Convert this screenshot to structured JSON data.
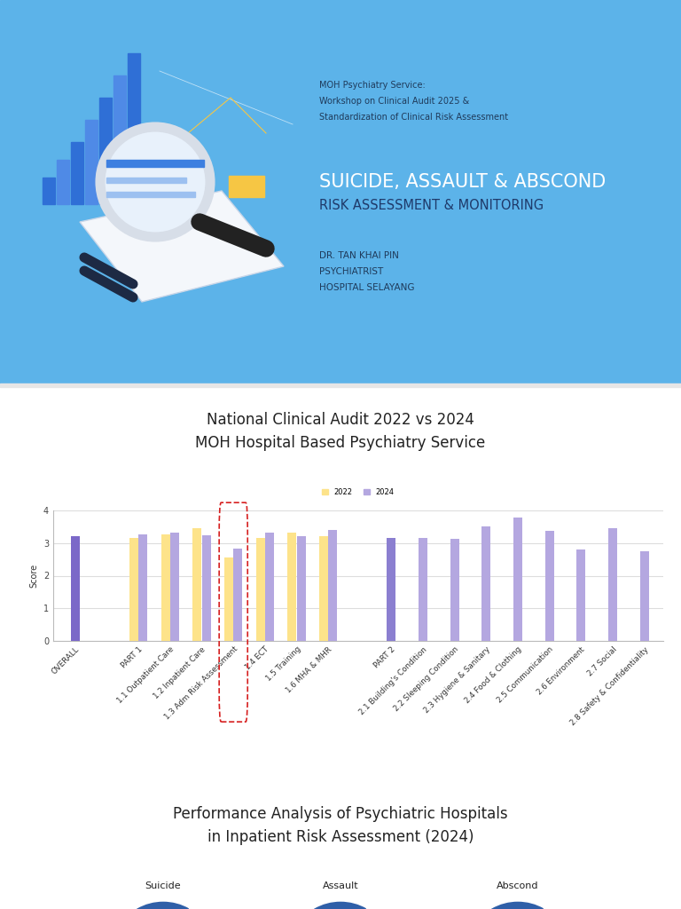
{
  "slide_1": {
    "header_lines": [
      "MOH Psychiatry Service:",
      "Workshop on Clinical Audit 2025 &",
      "Standardization of Clinical Risk Assessment"
    ],
    "title": "SUICIDE, ASSAULT & ABSCOND",
    "subtitle": "RISK ASSESSMENT & MONITORING",
    "presenter_lines": [
      "DR. TAN KHAI PIN",
      "PSYCHIATRIST",
      "HOSPITAL SELAYANG"
    ]
  },
  "chart_data": {
    "type": "bar",
    "title": "National Clinical Audit 2022 vs 2024\nMOH Hospital Based Psychiatry Service",
    "y_label": "Score",
    "categories": [
      "OVERALL",
      null,
      "PART 1",
      "1.1 Outpatient Care",
      "1.2 Inpatient Care",
      "1.3 Adm Risk Assessment",
      "1.4 ECT",
      "1.5 Training",
      "1.6 MHA & MHR",
      null,
      "PART 2",
      "2.1 Building's Condition",
      "2.2 Sleeping Condition",
      "2.3 Hygiene & Sanitary",
      "2.4 Food & Clothing",
      "2.5 Communication",
      "2.6 Environment",
      "2.7 Social",
      "2.8 Safety & Confidentiality"
    ],
    "series": [
      {
        "name": "2022",
        "color": "#fde38a",
        "values": [
          null,
          null,
          3.16,
          3.27,
          3.46,
          2.56,
          3.16,
          3.32,
          3.21,
          null,
          null,
          null,
          null,
          null,
          null,
          null,
          null,
          null,
          null
        ]
      },
      {
        "name": "2024",
        "color": "#b4a7e0",
        "colors": [
          "#7b68c8",
          null,
          "#b4a7e0",
          "#b4a7e0",
          "#b4a7e0",
          "#b4a7e0",
          "#b4a7e0",
          "#b4a7e0",
          "#b4a7e0",
          null,
          "#8b7fd0",
          "#b4a7e0",
          "#b4a7e0",
          "#b4a7e0",
          "#b4a7e0",
          "#b4a7e0",
          "#b4a7e0",
          "#b4a7e0",
          "#b4a7e0"
        ],
        "values": [
          3.21,
          null,
          3.27,
          3.32,
          3.24,
          2.83,
          3.32,
          3.21,
          3.4,
          null,
          3.16,
          3.16,
          3.13,
          3.51,
          3.78,
          3.37,
          2.8,
          3.46,
          2.75
        ]
      }
    ],
    "ylim": [
      0,
      4
    ],
    "yticks": [
      0,
      1,
      2,
      3,
      4
    ],
    "grid": true,
    "legend": "upper center"
  },
  "slide_3": {
    "title": "Performance Analysis of Psychiatric Hospitals\nin Inpatient Risk Assessment (2024)",
    "panels": [
      "Suicide",
      "Assault",
      "Abscond"
    ]
  }
}
